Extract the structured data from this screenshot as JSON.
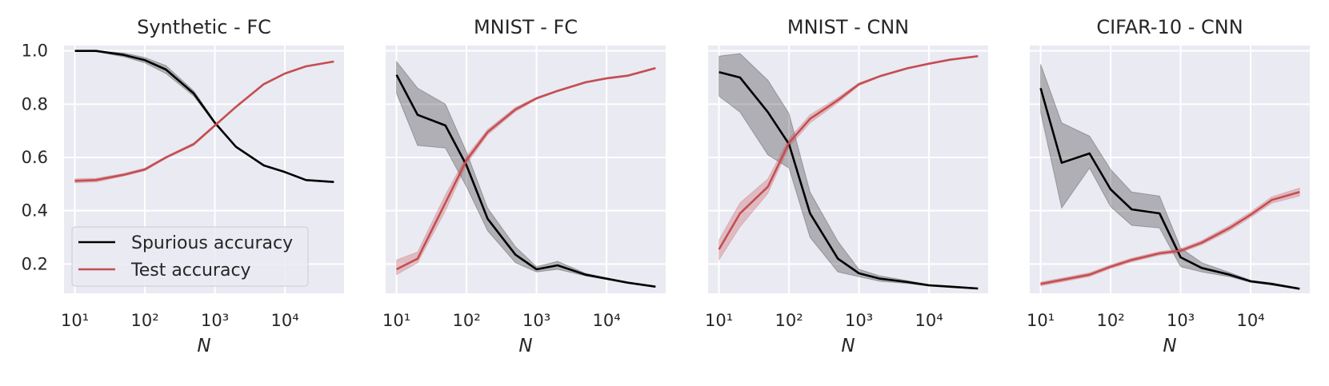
{
  "figure": {
    "legend": [
      {
        "label": "Spurious accuracy",
        "color": "#000000"
      },
      {
        "label": "Test accuracy",
        "color": "#c44e52"
      }
    ],
    "legend_placement": "lower-left of first panel"
  },
  "chart_data": [
    {
      "type": "line",
      "title": "Synthetic - FC",
      "xlabel": "N",
      "x_scale": "log",
      "xlim": [
        7,
        70000
      ],
      "ylim": [
        0.09,
        1.02
      ],
      "x_ticks": [
        {
          "value": 10,
          "label": "10¹"
        },
        {
          "value": 100,
          "label": "10²"
        },
        {
          "value": 1000,
          "label": "10³"
        },
        {
          "value": 10000,
          "label": "10⁴"
        }
      ],
      "y_ticks": [
        {
          "value": 0.2,
          "label": "0.2"
        },
        {
          "value": 0.4,
          "label": "0.4"
        },
        {
          "value": 0.6,
          "label": "0.6"
        },
        {
          "value": 0.8,
          "label": "0.8"
        },
        {
          "value": 1.0,
          "label": "1.0"
        }
      ],
      "show_y_tick_labels": true,
      "grid": true,
      "x": [
        10,
        20,
        50,
        100,
        200,
        500,
        1000,
        2000,
        5000,
        10000,
        20000,
        50000
      ],
      "series": [
        {
          "name": "Spurious accuracy",
          "color": "#000000",
          "values": [
            1.0,
            1.0,
            0.985,
            0.965,
            0.93,
            0.84,
            0.73,
            0.64,
            0.57,
            0.545,
            0.515,
            0.508
          ],
          "lower": [
            1.0,
            0.997,
            0.978,
            0.955,
            0.915,
            0.83,
            0.725,
            0.637,
            0.568,
            0.543,
            0.513,
            0.506
          ],
          "upper": [
            1.0,
            1.0,
            0.992,
            0.975,
            0.945,
            0.85,
            0.735,
            0.643,
            0.572,
            0.547,
            0.517,
            0.51
          ]
        },
        {
          "name": "Test accuracy",
          "color": "#c44e52",
          "values": [
            0.512,
            0.515,
            0.535,
            0.555,
            0.6,
            0.65,
            0.72,
            0.79,
            0.875,
            0.915,
            0.942,
            0.96
          ],
          "lower": [
            0.505,
            0.508,
            0.53,
            0.55,
            0.596,
            0.645,
            0.716,
            0.787,
            0.872,
            0.913,
            0.94,
            0.958
          ],
          "upper": [
            0.52,
            0.522,
            0.54,
            0.56,
            0.604,
            0.655,
            0.724,
            0.793,
            0.878,
            0.917,
            0.944,
            0.962
          ]
        }
      ]
    },
    {
      "type": "line",
      "title": "MNIST - FC",
      "xlabel": "N",
      "x_scale": "log",
      "xlim": [
        7,
        70000
      ],
      "ylim": [
        0.09,
        1.02
      ],
      "x_ticks": [
        {
          "value": 10,
          "label": "10¹"
        },
        {
          "value": 100,
          "label": "10²"
        },
        {
          "value": 1000,
          "label": "10³"
        },
        {
          "value": 10000,
          "label": "10⁴"
        }
      ],
      "y_ticks": [
        {
          "value": 0.2,
          "label": "0.2"
        },
        {
          "value": 0.4,
          "label": "0.4"
        },
        {
          "value": 0.6,
          "label": "0.6"
        },
        {
          "value": 0.8,
          "label": "0.8"
        },
        {
          "value": 1.0,
          "label": "1.0"
        }
      ],
      "show_y_tick_labels": false,
      "grid": true,
      "x": [
        10,
        20,
        50,
        100,
        200,
        500,
        1000,
        2000,
        5000,
        10000,
        20000,
        50000
      ],
      "series": [
        {
          "name": "Spurious accuracy",
          "color": "#000000",
          "values": [
            0.91,
            0.76,
            0.72,
            0.57,
            0.37,
            0.235,
            0.18,
            0.195,
            0.16,
            0.145,
            0.13,
            0.115
          ],
          "lower": [
            0.84,
            0.645,
            0.635,
            0.49,
            0.325,
            0.205,
            0.17,
            0.18,
            0.155,
            0.142,
            0.128,
            0.113
          ],
          "upper": [
            0.96,
            0.86,
            0.8,
            0.62,
            0.41,
            0.265,
            0.19,
            0.21,
            0.165,
            0.148,
            0.132,
            0.117
          ]
        },
        {
          "name": "Test accuracy",
          "color": "#c44e52",
          "values": [
            0.18,
            0.22,
            0.43,
            0.59,
            0.695,
            0.78,
            0.822,
            0.85,
            0.882,
            0.897,
            0.907,
            0.935
          ],
          "lower": [
            0.16,
            0.205,
            0.4,
            0.575,
            0.685,
            0.772,
            0.818,
            0.847,
            0.879,
            0.894,
            0.904,
            0.932
          ],
          "upper": [
            0.215,
            0.245,
            0.46,
            0.605,
            0.705,
            0.788,
            0.826,
            0.853,
            0.885,
            0.9,
            0.91,
            0.938
          ]
        }
      ]
    },
    {
      "type": "line",
      "title": "MNIST - CNN",
      "xlabel": "N",
      "x_scale": "log",
      "xlim": [
        7,
        70000
      ],
      "ylim": [
        0.09,
        1.02
      ],
      "x_ticks": [
        {
          "value": 10,
          "label": "10¹"
        },
        {
          "value": 100,
          "label": "10²"
        },
        {
          "value": 1000,
          "label": "10³"
        },
        {
          "value": 10000,
          "label": "10⁴"
        }
      ],
      "y_ticks": [
        {
          "value": 0.2,
          "label": "0.2"
        },
        {
          "value": 0.4,
          "label": "0.4"
        },
        {
          "value": 0.6,
          "label": "0.6"
        },
        {
          "value": 0.8,
          "label": "0.8"
        },
        {
          "value": 1.0,
          "label": "1.0"
        }
      ],
      "show_y_tick_labels": false,
      "grid": true,
      "x": [
        10,
        20,
        50,
        100,
        200,
        500,
        1000,
        2000,
        5000,
        10000,
        20000,
        50000
      ],
      "series": [
        {
          "name": "Spurious accuracy",
          "color": "#000000",
          "values": [
            0.92,
            0.9,
            0.77,
            0.65,
            0.39,
            0.22,
            0.165,
            0.145,
            0.132,
            0.12,
            0.115,
            0.108
          ],
          "lower": [
            0.83,
            0.77,
            0.61,
            0.56,
            0.3,
            0.17,
            0.152,
            0.135,
            0.127,
            0.117,
            0.112,
            0.106
          ],
          "upper": [
            0.98,
            0.99,
            0.89,
            0.765,
            0.47,
            0.285,
            0.18,
            0.155,
            0.137,
            0.123,
            0.118,
            0.11
          ]
        },
        {
          "name": "Test accuracy",
          "color": "#c44e52",
          "values": [
            0.255,
            0.39,
            0.49,
            0.655,
            0.745,
            0.815,
            0.875,
            0.905,
            0.935,
            0.952,
            0.967,
            0.98
          ],
          "lower": [
            0.215,
            0.34,
            0.465,
            0.64,
            0.73,
            0.805,
            0.87,
            0.902,
            0.932,
            0.95,
            0.965,
            0.978
          ],
          "upper": [
            0.29,
            0.43,
            0.52,
            0.67,
            0.76,
            0.825,
            0.88,
            0.908,
            0.938,
            0.954,
            0.969,
            0.982
          ]
        }
      ]
    },
    {
      "type": "line",
      "title": "CIFAR-10 - CNN",
      "xlabel": "N",
      "x_scale": "log",
      "xlim": [
        7,
        70000
      ],
      "ylim": [
        0.09,
        1.02
      ],
      "x_ticks": [
        {
          "value": 10,
          "label": "10¹"
        },
        {
          "value": 100,
          "label": "10²"
        },
        {
          "value": 1000,
          "label": "10³"
        },
        {
          "value": 10000,
          "label": "10⁴"
        }
      ],
      "y_ticks": [
        {
          "value": 0.2,
          "label": "0.2"
        },
        {
          "value": 0.4,
          "label": "0.4"
        },
        {
          "value": 0.6,
          "label": "0.6"
        },
        {
          "value": 0.8,
          "label": "0.8"
        },
        {
          "value": 1.0,
          "label": "1.0"
        }
      ],
      "show_y_tick_labels": false,
      "grid": true,
      "x": [
        10,
        20,
        50,
        100,
        200,
        500,
        1000,
        2000,
        5000,
        10000,
        20000,
        50000
      ],
      "series": [
        {
          "name": "Spurious accuracy",
          "color": "#000000",
          "values": [
            0.86,
            0.58,
            0.615,
            0.48,
            0.405,
            0.39,
            0.225,
            0.185,
            0.16,
            0.135,
            0.125,
            0.107
          ],
          "lower": [
            0.77,
            0.41,
            0.56,
            0.415,
            0.345,
            0.335,
            0.19,
            0.17,
            0.152,
            0.131,
            0.121,
            0.105
          ],
          "upper": [
            0.95,
            0.73,
            0.68,
            0.555,
            0.47,
            0.455,
            0.26,
            0.205,
            0.168,
            0.139,
            0.129,
            0.109
          ]
        },
        {
          "name": "Test accuracy",
          "color": "#c44e52",
          "values": [
            0.125,
            0.14,
            0.16,
            0.19,
            0.215,
            0.24,
            0.25,
            0.28,
            0.335,
            0.385,
            0.44,
            0.47
          ],
          "lower": [
            0.118,
            0.133,
            0.153,
            0.183,
            0.208,
            0.233,
            0.243,
            0.272,
            0.325,
            0.375,
            0.428,
            0.455
          ],
          "upper": [
            0.132,
            0.147,
            0.167,
            0.197,
            0.222,
            0.247,
            0.257,
            0.288,
            0.345,
            0.395,
            0.452,
            0.485
          ]
        }
      ]
    }
  ]
}
